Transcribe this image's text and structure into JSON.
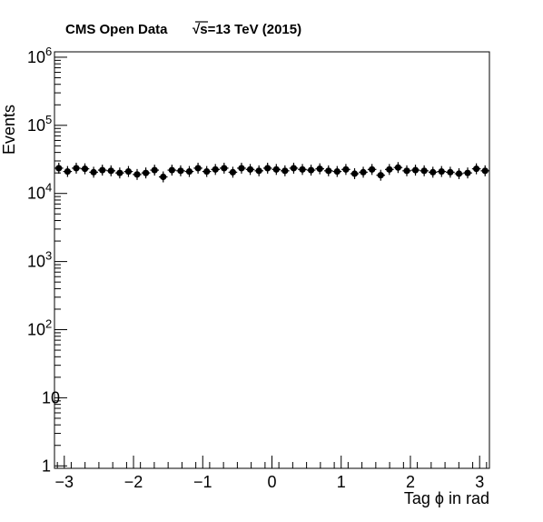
{
  "chart_data": {
    "type": "scatter",
    "title": "CMS Open Data",
    "subtitle": "√s=13 TeV (2015)",
    "xlabel": "Tag ϕ in rad",
    "ylabel": "Events",
    "log_y": true,
    "xlim": [
      -3.1416,
      3.1416
    ],
    "ylim": [
      0.92,
      1200000
    ],
    "x_ticks": [
      {
        "v": -3,
        "label": "−3"
      },
      {
        "v": -2,
        "label": "−2"
      },
      {
        "v": -1,
        "label": "−1"
      },
      {
        "v": 0,
        "label": "0"
      },
      {
        "v": 1,
        "label": "1"
      },
      {
        "v": 2,
        "label": "2"
      },
      {
        "v": 3,
        "label": "3"
      }
    ],
    "y_ticks": [
      {
        "v": 1,
        "base": "1",
        "exp": ""
      },
      {
        "v": 10,
        "base": "10",
        "exp": ""
      },
      {
        "v": 100,
        "base": "10",
        "exp": "2"
      },
      {
        "v": 1000,
        "base": "10",
        "exp": "3"
      },
      {
        "v": 10000,
        "base": "10",
        "exp": "4"
      },
      {
        "v": 100000,
        "base": "10",
        "exp": "5"
      },
      {
        "v": 1000000,
        "base": "10",
        "exp": "6"
      }
    ],
    "x": [
      -3.079,
      -2.953,
      -2.827,
      -2.702,
      -2.576,
      -2.45,
      -2.325,
      -2.199,
      -2.073,
      -1.948,
      -1.822,
      -1.696,
      -1.571,
      -1.445,
      -1.319,
      -1.194,
      -1.068,
      -0.942,
      -0.817,
      -0.691,
      -0.565,
      -0.44,
      -0.314,
      -0.188,
      -0.063,
      0.063,
      0.188,
      0.314,
      0.44,
      0.565,
      0.691,
      0.817,
      0.942,
      1.068,
      1.194,
      1.319,
      1.445,
      1.571,
      1.696,
      1.822,
      1.948,
      2.073,
      2.199,
      2.325,
      2.45,
      2.576,
      2.702,
      2.827,
      2.953,
      3.079
    ],
    "y": [
      23500,
      21000,
      23500,
      23000,
      20500,
      22000,
      21500,
      20000,
      21000,
      19000,
      20000,
      22000,
      17500,
      22000,
      21500,
      21000,
      23500,
      21000,
      22500,
      23500,
      20500,
      23500,
      22500,
      21500,
      23500,
      22500,
      21500,
      23500,
      22500,
      22000,
      23000,
      21500,
      21000,
      22500,
      19500,
      20500,
      22500,
      18500,
      22500,
      24000,
      21500,
      22000,
      21500,
      20500,
      21000,
      20500,
      19500,
      20000,
      23000,
      21500
    ]
  }
}
